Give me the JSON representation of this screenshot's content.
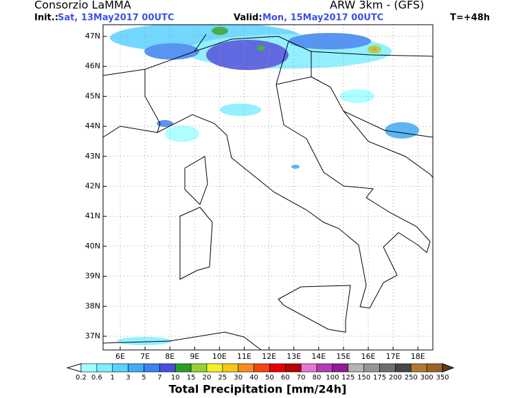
{
  "header": {
    "title": "Consorzio LaMMA",
    "model": "ARW 3km - (GFS)",
    "init_label": "Init.:",
    "init_time": "Sat, 13May2017 00UTC",
    "valid_label": "Valid:",
    "valid_time": "Mon, 15May2017 00UTC",
    "lead_time": "T=+48h"
  },
  "map": {
    "lat_labels": [
      "47N",
      "46N",
      "45N",
      "44N",
      "43N",
      "42N",
      "41N",
      "40N",
      "39N",
      "38N",
      "37N"
    ],
    "lon_labels": [
      "6E",
      "7E",
      "8E",
      "9E",
      "10E",
      "11E",
      "12E",
      "13E",
      "14E",
      "15E",
      "16E",
      "17E",
      "18E"
    ]
  },
  "legend": {
    "title": "Total Precipitation [mm/24h]",
    "labels": [
      "0.2",
      "0.6",
      "1",
      "3",
      "5",
      "7",
      "10",
      "15",
      "20",
      "25",
      "30",
      "40",
      "50",
      "60",
      "70",
      "80",
      "100",
      "125",
      "150",
      "175",
      "200",
      "250",
      "300",
      "350"
    ],
    "under_color": "#ffffff",
    "colors": [
      "#a0ffff",
      "#80eeff",
      "#5ad2ff",
      "#40aaf5",
      "#3c82f0",
      "#4650dc",
      "#28a028",
      "#96d232",
      "#f5f028",
      "#f5c81e",
      "#f58c1e",
      "#f04614",
      "#e60000",
      "#b40000",
      "#e678d2",
      "#b43cb4",
      "#8c1e96",
      "#b4b4b4",
      "#969696",
      "#6e6e6e",
      "#464646",
      "#b47832",
      "#966428"
    ],
    "over_color": "#643c14"
  }
}
